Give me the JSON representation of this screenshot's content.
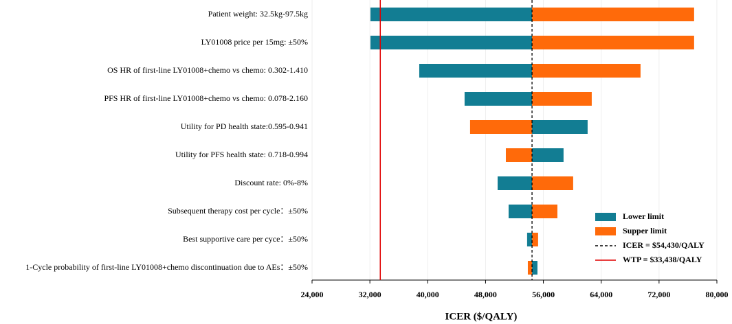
{
  "chart_data": {
    "type": "tornado",
    "x_label": "ICER ($/QALY)",
    "categories": [
      "Patient weight: 32.5kg-97.5kg",
      "LY01008 price per 15mg: ±50%",
      "OS HR of first-line LY01008+chemo vs chemo: 0.302-1.410",
      "PFS HR of first-line LY01008+chemo vs chemo: 0.078-2.160",
      "Utility for PD health state:0.595-0.941",
      "Utility for PFS health state: 0.718-0.994",
      "Discount rate: 0%-8%",
      "Subsequent therapy cost per cycle：±50%",
      "Best supportive care per cyce：±50%",
      "1-Cycle probability of first-line LY01008+chemo discontinuation due to AEs：±50%"
    ],
    "series": [
      {
        "name": "Lower limit",
        "color": "#127d93",
        "values": [
          32080,
          32080,
          38830,
          45100,
          62120,
          58790,
          49670,
          51190,
          53750,
          55180
        ]
      },
      {
        "name": "Supper limit",
        "color": "#ff6a0a",
        "values": [
          76850,
          76850,
          69440,
          62690,
          45860,
          50810,
          60120,
          57940,
          55270,
          53850
        ]
      }
    ],
    "base": {
      "value": 54430,
      "label": "ICER = $54,430/QALY",
      "color": "#000000"
    },
    "wtp": {
      "value": 33438,
      "label": "WTP = $33,438/QALY",
      "color": "#e00000"
    },
    "xlim": [
      24000,
      80000
    ],
    "xticks": [
      {
        "value": 24000,
        "label": "24,000"
      },
      {
        "value": 32000,
        "label": "32,000"
      },
      {
        "value": 40000,
        "label": "40,000"
      },
      {
        "value": 48000,
        "label": "48,000"
      },
      {
        "value": 56000,
        "label": "56,000"
      },
      {
        "value": 64000,
        "label": "64,000"
      },
      {
        "value": 72000,
        "label": "72,000"
      },
      {
        "value": 80000,
        "label": "80,000"
      }
    ],
    "grid": true
  }
}
